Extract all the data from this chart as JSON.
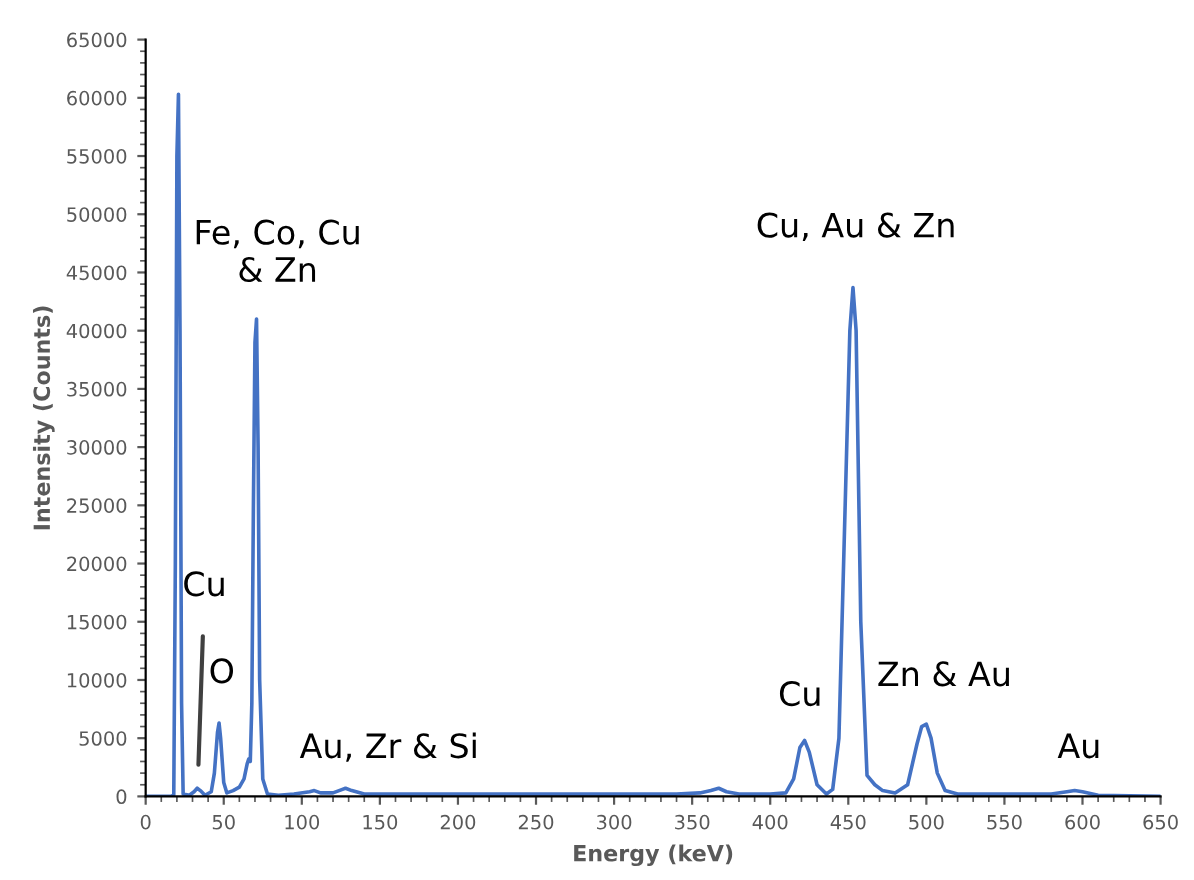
{
  "chart_data": {
    "type": "line",
    "xlabel": "Energy (keV)",
    "ylabel": "Intensity (Counts)",
    "series": [
      {
        "color": "#4472c4",
        "x": [
          0,
          16,
          18,
          19,
          20,
          21,
          22,
          23,
          24,
          28,
          31,
          33,
          35,
          38,
          42,
          44,
          46,
          47,
          48,
          50,
          52,
          56,
          60,
          63,
          65,
          66,
          67,
          68,
          69,
          70,
          71,
          72,
          73,
          75,
          78,
          85,
          95,
          105,
          108,
          112,
          120,
          126,
          128,
          132,
          140,
          160,
          200,
          250,
          300,
          340,
          355,
          362,
          367,
          372,
          380,
          400,
          410,
          415,
          419,
          422,
          425,
          430,
          436,
          440,
          444,
          448,
          451,
          453,
          455,
          458,
          462,
          467,
          472,
          480,
          488,
          494,
          497,
          500,
          503,
          507,
          512,
          520,
          540,
          580,
          590,
          595,
          600,
          610,
          650
        ],
        "values": [
          0,
          0,
          100,
          20000,
          55000,
          60300,
          40000,
          8000,
          200,
          100,
          400,
          700,
          500,
          100,
          400,
          2000,
          5500,
          6300,
          5000,
          1200,
          300,
          500,
          800,
          1500,
          2800,
          3200,
          3000,
          8000,
          25000,
          39000,
          41000,
          30000,
          10000,
          1500,
          200,
          100,
          200,
          400,
          500,
          300,
          300,
          600,
          700,
          500,
          200,
          200,
          200,
          200,
          200,
          200,
          300,
          500,
          700,
          400,
          200,
          200,
          300,
          1500,
          4200,
          4800,
          3800,
          1000,
          200,
          600,
          5000,
          25000,
          40000,
          43700,
          40000,
          15000,
          1800,
          1000,
          500,
          300,
          1000,
          4500,
          6000,
          6200,
          5000,
          2000,
          500,
          200,
          200,
          200,
          400,
          500,
          400,
          100,
          0
        ]
      }
    ],
    "xlim": [
      0,
      650
    ],
    "xticks": [
      0,
      50,
      100,
      150,
      200,
      250,
      300,
      350,
      400,
      450,
      500,
      550,
      600,
      650
    ],
    "ylim": [
      0,
      65000
    ],
    "yticks": [
      0,
      5000,
      10000,
      15000,
      20000,
      25000,
      30000,
      35000,
      40000,
      45000,
      50000,
      55000,
      60000,
      65000
    ],
    "grid": false,
    "marker": "none",
    "line_style": "solid",
    "annotations": [
      "Fe, Co, Cu\n& Zn",
      "Cu",
      "O",
      "Au, Zr & Si",
      "Cu, Au & Zn",
      "Cu",
      "Zn & Au",
      "Au"
    ]
  }
}
